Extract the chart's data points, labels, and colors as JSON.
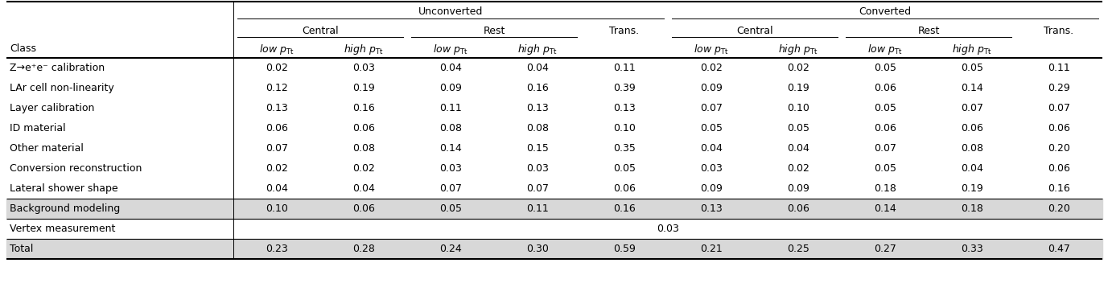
{
  "rows": [
    [
      "Z→e⁺e⁻ calibration",
      "0.02",
      "0.03",
      "0.04",
      "0.04",
      "0.11",
      "0.02",
      "0.02",
      "0.05",
      "0.05",
      "0.11"
    ],
    [
      "LAr cell non-linearity",
      "0.12",
      "0.19",
      "0.09",
      "0.16",
      "0.39",
      "0.09",
      "0.19",
      "0.06",
      "0.14",
      "0.29"
    ],
    [
      "Layer calibration",
      "0.13",
      "0.16",
      "0.11",
      "0.13",
      "0.13",
      "0.07",
      "0.10",
      "0.05",
      "0.07",
      "0.07"
    ],
    [
      "ID material",
      "0.06",
      "0.06",
      "0.08",
      "0.08",
      "0.10",
      "0.05",
      "0.05",
      "0.06",
      "0.06",
      "0.06"
    ],
    [
      "Other material",
      "0.07",
      "0.08",
      "0.14",
      "0.15",
      "0.35",
      "0.04",
      "0.04",
      "0.07",
      "0.08",
      "0.20"
    ],
    [
      "Conversion reconstruction",
      "0.02",
      "0.02",
      "0.03",
      "0.03",
      "0.05",
      "0.03",
      "0.02",
      "0.05",
      "0.04",
      "0.06"
    ],
    [
      "Lateral shower shape",
      "0.04",
      "0.04",
      "0.07",
      "0.07",
      "0.06",
      "0.09",
      "0.09",
      "0.18",
      "0.19",
      "0.16"
    ]
  ],
  "bg_row": [
    "Background modeling",
    "0.10",
    "0.06",
    "0.05",
    "0.11",
    "0.16",
    "0.13",
    "0.06",
    "0.14",
    "0.18",
    "0.20"
  ],
  "vertex_row": [
    "Vertex measurement",
    "0.03"
  ],
  "total_row": [
    "Total",
    "0.23",
    "0.28",
    "0.24",
    "0.30",
    "0.59",
    "0.21",
    "0.25",
    "0.27",
    "0.33",
    "0.47"
  ],
  "bg_color_main": "#ffffff",
  "bg_color_shaded": "#d8d8d8",
  "fontsize": 9.0,
  "hdr_fontsize": 9.0
}
